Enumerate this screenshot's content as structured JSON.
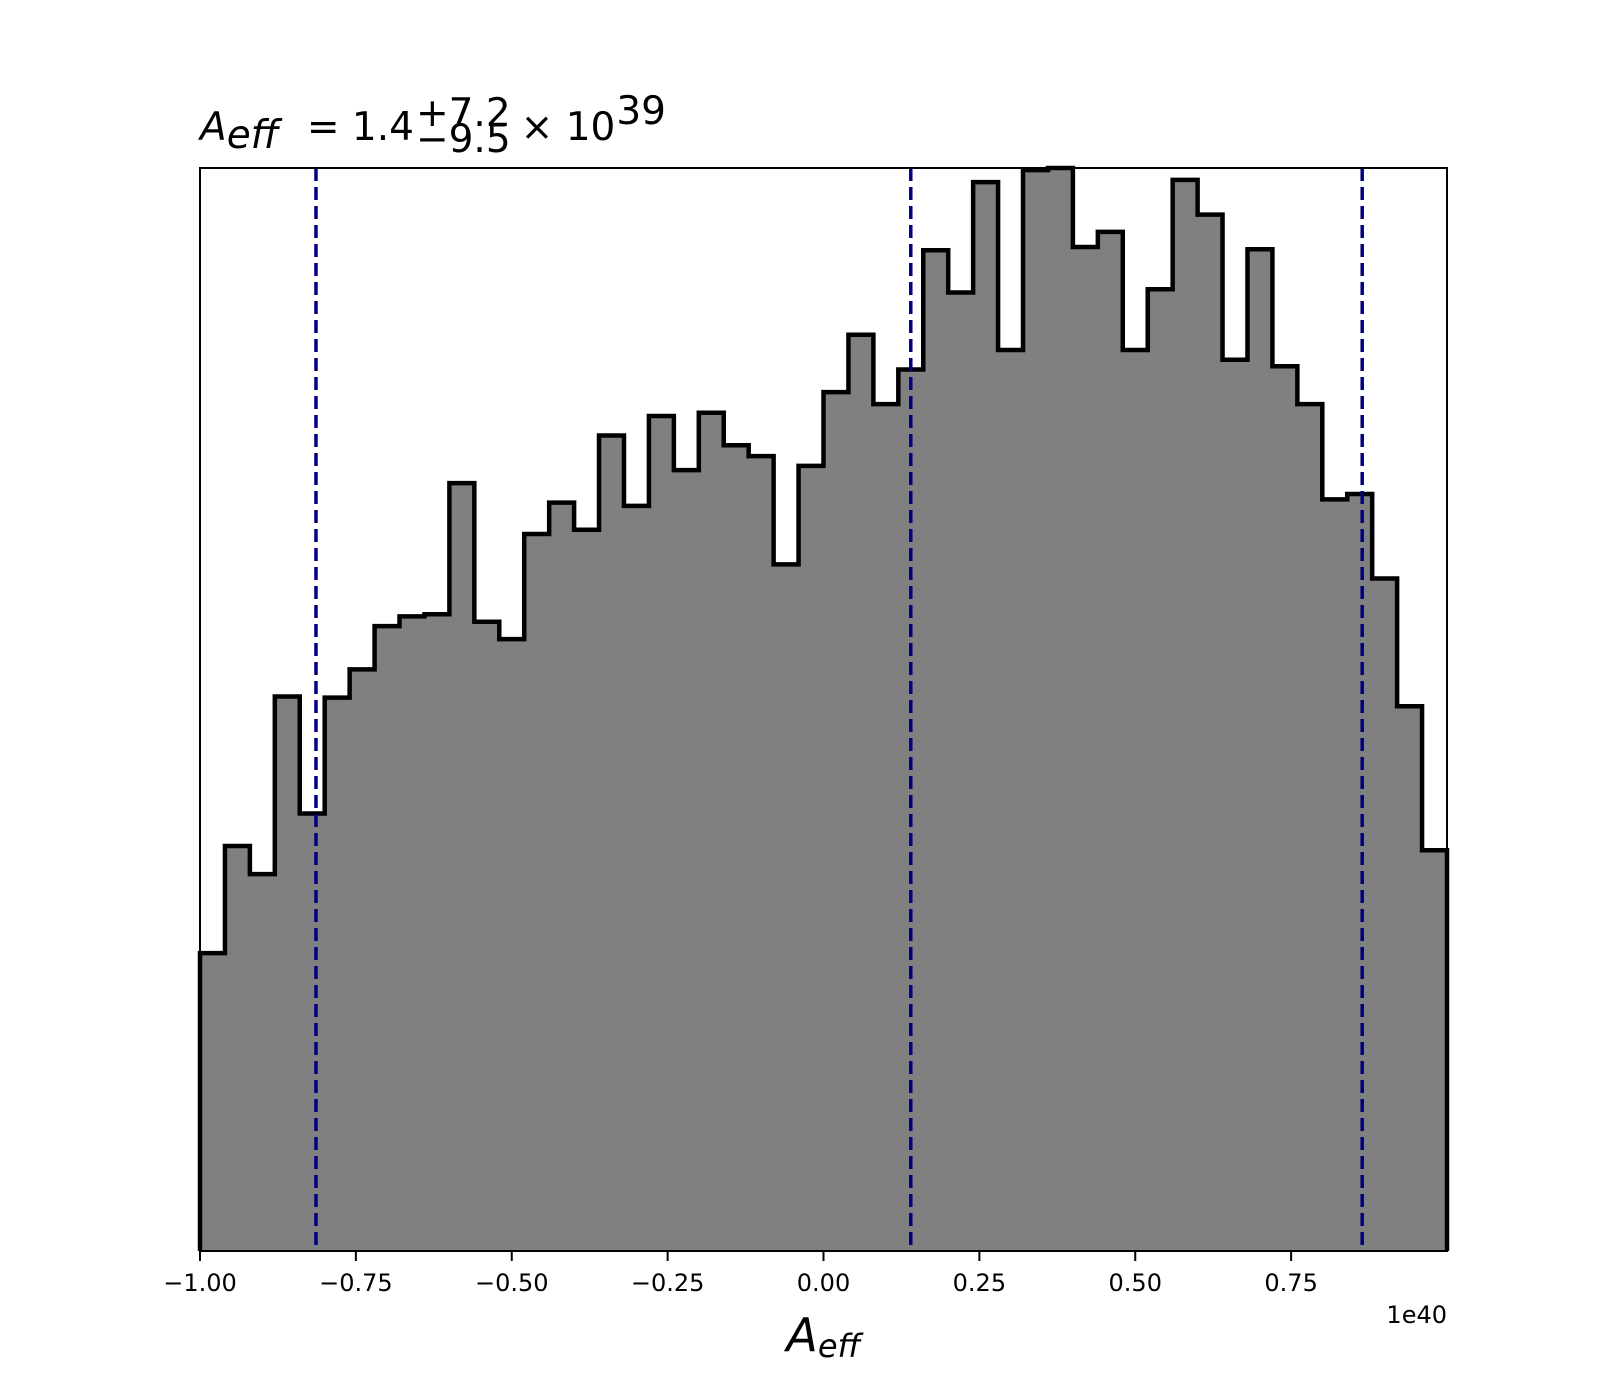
{
  "chart_data": {
    "type": "histogram",
    "title": {
      "symbol": "A",
      "symbol_sub": "eff",
      "equals_value": "= 1.4",
      "upper_err": "+7.2",
      "lower_err": "−9.5",
      "times_text": "× 10",
      "exponent": "39"
    },
    "xlabel": {
      "symbol": "A",
      "symbol_sub": "eff"
    },
    "offset_label": "1e40",
    "ylabel": "",
    "xlim": [
      -1.0,
      1.0
    ],
    "ylim": [
      0,
      1.0
    ],
    "x_ticks": [
      -1.0,
      -0.75,
      -0.5,
      -0.25,
      0.0,
      0.25,
      0.5,
      0.75
    ],
    "x_tick_labels": [
      "−1.00",
      "−0.75",
      "−0.50",
      "−0.25",
      "0.00",
      "0.25",
      "0.50",
      "0.75"
    ],
    "y_ticks_visible": false,
    "grid": false,
    "bin_edges": [
      -1.0,
      -0.96,
      -0.92,
      -0.88,
      -0.84,
      -0.8,
      -0.76,
      -0.72,
      -0.68,
      -0.64,
      -0.6,
      -0.56,
      -0.52,
      -0.48,
      -0.44,
      -0.4,
      -0.36,
      -0.32,
      -0.28,
      -0.24,
      -0.2,
      -0.16,
      -0.12,
      -0.08,
      -0.04,
      0.0,
      0.04,
      0.08,
      0.12,
      0.16,
      0.2,
      0.24,
      0.28,
      0.32,
      0.36,
      0.4,
      0.44,
      0.48,
      0.52,
      0.56,
      0.6,
      0.64,
      0.68,
      0.72,
      0.76,
      0.8,
      0.84,
      0.88,
      0.92,
      0.96,
      1.0
    ],
    "values": [
      0.275,
      0.374,
      0.348,
      0.512,
      0.404,
      0.511,
      0.537,
      0.577,
      0.586,
      0.588,
      0.709,
      0.581,
      0.565,
      0.662,
      0.691,
      0.666,
      0.753,
      0.688,
      0.771,
      0.721,
      0.774,
      0.744,
      0.734,
      0.634,
      0.725,
      0.793,
      0.846,
      0.782,
      0.814,
      0.924,
      0.885,
      0.987,
      0.832,
      0.998,
      1.0,
      0.927,
      0.941,
      0.832,
      0.888,
      0.989,
      0.957,
      0.823,
      0.925,
      0.817,
      0.782,
      0.694,
      0.699,
      0.621,
      0.503,
      0.37
    ],
    "fill_color": "#808080",
    "edge_color": "#000000",
    "vlines": [
      {
        "x": -0.814,
        "color": "#000080",
        "style": "dashed"
      },
      {
        "x": 0.14,
        "color": "#000080",
        "style": "dashed"
      },
      {
        "x": 0.864,
        "color": "#000080",
        "style": "dashed"
      }
    ]
  }
}
